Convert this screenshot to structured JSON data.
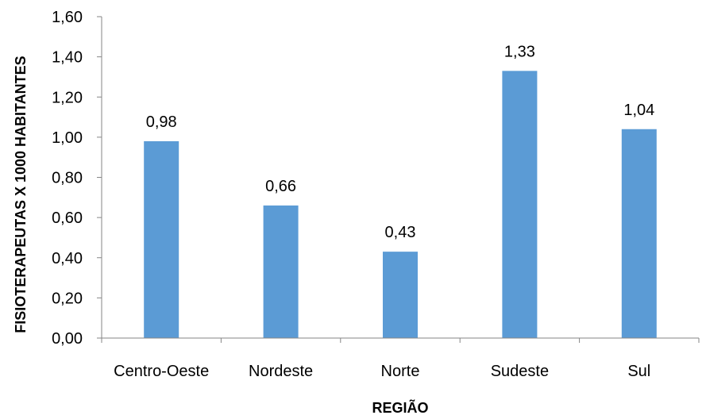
{
  "chart_data": {
    "type": "bar",
    "categories": [
      "Centro-Oeste",
      "Nordeste",
      "Norte",
      "Sudeste",
      "Sul"
    ],
    "values": [
      0.98,
      0.66,
      0.43,
      1.33,
      1.04
    ],
    "data_labels": [
      "0,98",
      "0,66",
      "0,43",
      "1,33",
      "1,04"
    ],
    "y_ticks": [
      "0,00",
      "0,20",
      "0,40",
      "0,60",
      "0,80",
      "1,00",
      "1,20",
      "1,40",
      "1,60"
    ],
    "xlabel": "REGIÃO",
    "ylabel": "FISIOTERAPEUTAS X 1000 HABITANTES",
    "ylim": [
      0,
      1.6
    ],
    "grid": false,
    "bar_color": "#5B9BD5",
    "axis_color": "#868686"
  }
}
